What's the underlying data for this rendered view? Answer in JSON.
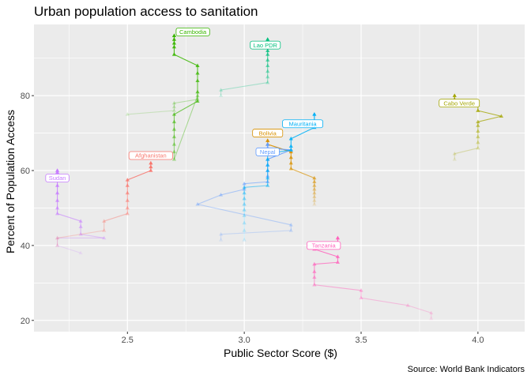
{
  "chart_data": {
    "type": "line",
    "title": "Urban population access to sanitation",
    "xlabel": "Public Sector Score ($)",
    "ylabel": "Percent of Population Access",
    "caption": "Source: World Bank Indicators",
    "xlim": [
      2.1,
      4.2
    ],
    "ylim": [
      17,
      99
    ],
    "xticks": [
      2.5,
      3.0,
      3.5,
      4.0
    ],
    "xtick_labels": [
      "2.5",
      "3.0",
      "3.5",
      "4.0"
    ],
    "yticks": [
      20,
      40,
      60,
      80
    ],
    "ytick_labels": [
      "20",
      "40",
      "60",
      "80"
    ],
    "grid": true,
    "legend": "none",
    "series": [
      {
        "name": "Sudan",
        "color": "#C77CFF",
        "points": [
          [
            2.3,
            38
          ],
          [
            2.2,
            40
          ],
          [
            2.2,
            42
          ],
          [
            2.4,
            42
          ],
          [
            2.3,
            43
          ],
          [
            2.3,
            45
          ],
          [
            2.3,
            46.5
          ],
          [
            2.2,
            48.5
          ],
          [
            2.2,
            50
          ],
          [
            2.2,
            52
          ],
          [
            2.2,
            54
          ],
          [
            2.2,
            56
          ],
          [
            2.2,
            58
          ],
          [
            2.2,
            59.5
          ],
          [
            2.2,
            60
          ]
        ]
      },
      {
        "name": "Afghanistan",
        "color": "#F8766D",
        "points": [
          [
            2.2,
            40
          ],
          [
            2.2,
            42
          ],
          [
            2.4,
            44
          ],
          [
            2.4,
            46.5
          ],
          [
            2.5,
            48.5
          ],
          [
            2.5,
            50
          ],
          [
            2.5,
            52
          ],
          [
            2.5,
            54
          ],
          [
            2.5,
            56
          ],
          [
            2.5,
            57.5
          ],
          [
            2.6,
            60
          ],
          [
            2.6,
            61
          ],
          [
            2.6,
            62
          ]
        ]
      },
      {
        "name": "Cambodia",
        "color": "#39B600",
        "points": [
          [
            2.5,
            75
          ],
          [
            2.7,
            76
          ],
          [
            2.7,
            77
          ],
          [
            2.7,
            78
          ],
          [
            2.8,
            79
          ],
          [
            2.8,
            80
          ],
          [
            2.7,
            63
          ],
          [
            2.7,
            65
          ],
          [
            2.7,
            67
          ],
          [
            2.7,
            69
          ],
          [
            2.7,
            71
          ],
          [
            2.7,
            73
          ],
          [
            2.7,
            75
          ],
          [
            2.8,
            78.5
          ],
          [
            2.8,
            81
          ],
          [
            2.8,
            84
          ],
          [
            2.8,
            86
          ],
          [
            2.8,
            88
          ],
          [
            2.7,
            91
          ],
          [
            2.7,
            93
          ],
          [
            2.7,
            94
          ],
          [
            2.7,
            95
          ],
          [
            2.7,
            96
          ]
        ]
      },
      {
        "name": "Lao PDR",
        "color": "#00BF7D",
        "points": [
          [
            2.9,
            80
          ],
          [
            2.9,
            81.5
          ],
          [
            3.1,
            83.5
          ],
          [
            3.1,
            85
          ],
          [
            3.1,
            86.5
          ],
          [
            3.1,
            88
          ],
          [
            3.1,
            89.5
          ],
          [
            3.1,
            91
          ],
          [
            3.1,
            92
          ],
          [
            3.1,
            93
          ],
          [
            3.1,
            94
          ],
          [
            3.1,
            95
          ]
        ]
      },
      {
        "name": "Bolivia",
        "color": "#D89000",
        "points": [
          [
            3.3,
            51
          ],
          [
            3.3,
            52
          ],
          [
            3.3,
            53
          ],
          [
            3.3,
            54
          ],
          [
            3.3,
            55
          ],
          [
            3.3,
            56
          ],
          [
            3.3,
            57
          ],
          [
            3.3,
            58
          ],
          [
            3.2,
            60.5
          ],
          [
            3.2,
            62
          ],
          [
            3.2,
            63.5
          ],
          [
            3.2,
            65
          ],
          [
            3.1,
            67
          ],
          [
            3.1,
            68
          ]
        ]
      },
      {
        "name": "Nepal",
        "color": "#619CFF",
        "points": [
          [
            2.9,
            41.5
          ],
          [
            2.9,
            43
          ],
          [
            3.2,
            44
          ],
          [
            3.2,
            45.5
          ],
          [
            2.8,
            51
          ],
          [
            2.9,
            53.5
          ],
          [
            3.0,
            55
          ],
          [
            3.0,
            56.5
          ],
          [
            3.1,
            57
          ],
          [
            3.1,
            58.5
          ],
          [
            3.1,
            60
          ],
          [
            3.1,
            61.5
          ],
          [
            3.1,
            63
          ],
          [
            3.2,
            65.5
          ],
          [
            3.1,
            66
          ],
          [
            3.1,
            67
          ]
        ]
      },
      {
        "name": "Mauritania",
        "color": "#00B0F6",
        "points": [
          [
            3.0,
            41.5
          ],
          [
            3.0,
            44
          ],
          [
            3.0,
            46
          ],
          [
            3.0,
            48
          ],
          [
            3.0,
            49.5
          ],
          [
            3.0,
            51
          ],
          [
            3.0,
            52.5
          ],
          [
            3.0,
            54
          ],
          [
            3.0,
            55.5
          ],
          [
            3.1,
            56
          ],
          [
            3.1,
            58
          ],
          [
            3.1,
            60
          ],
          [
            3.1,
            61.5
          ],
          [
            3.1,
            63
          ],
          [
            3.1,
            64.5
          ],
          [
            3.2,
            65.5
          ],
          [
            3.2,
            66.5
          ],
          [
            3.2,
            68.5
          ],
          [
            3.3,
            71.5
          ],
          [
            3.3,
            73
          ],
          [
            3.3,
            75
          ]
        ]
      },
      {
        "name": "Cabo Verde",
        "color": "#A3A500",
        "points": [
          [
            3.9,
            63
          ],
          [
            3.9,
            64.5
          ],
          [
            4.0,
            66
          ],
          [
            4.0,
            67.5
          ],
          [
            4.0,
            69
          ],
          [
            4.0,
            70.5
          ],
          [
            4.0,
            72
          ],
          [
            4.0,
            73
          ],
          [
            4.1,
            74.5
          ],
          [
            4.0,
            76
          ],
          [
            4.0,
            77.5
          ],
          [
            3.9,
            79
          ],
          [
            3.9,
            80
          ]
        ]
      },
      {
        "name": "Tanzania",
        "color": "#FF62BC",
        "points": [
          [
            3.8,
            20.5
          ],
          [
            3.8,
            22
          ],
          [
            3.7,
            24
          ],
          [
            3.5,
            26
          ],
          [
            3.5,
            28
          ],
          [
            3.3,
            29.5
          ],
          [
            3.3,
            31.5
          ],
          [
            3.3,
            33
          ],
          [
            3.3,
            35
          ],
          [
            3.4,
            35.5
          ],
          [
            3.4,
            37
          ],
          [
            3.3,
            39
          ],
          [
            3.4,
            40.5
          ],
          [
            3.4,
            42
          ]
        ]
      }
    ],
    "annotations": [
      {
        "text": "Sudan",
        "series": "Sudan",
        "x": 2.2,
        "y": 58
      },
      {
        "text": "Afghanistan",
        "series": "Afghanistan",
        "x": 2.6,
        "y": 64
      },
      {
        "text": "Cambodia",
        "series": "Cambodia",
        "x": 2.78,
        "y": 97
      },
      {
        "text": "Lao PDR",
        "series": "Lao PDR",
        "x": 3.09,
        "y": 93.5
      },
      {
        "text": "Bolivia",
        "series": "Bolivia",
        "x": 3.1,
        "y": 70
      },
      {
        "text": "Nepal",
        "series": "Nepal",
        "x": 3.1,
        "y": 65
      },
      {
        "text": "Mauritania",
        "series": "Mauritania",
        "x": 3.25,
        "y": 72.5
      },
      {
        "text": "Cabo Verde",
        "series": "Cabo Verde",
        "x": 3.92,
        "y": 78
      },
      {
        "text": "Tanzania",
        "series": "Tanzania",
        "x": 3.34,
        "y": 40
      }
    ]
  }
}
